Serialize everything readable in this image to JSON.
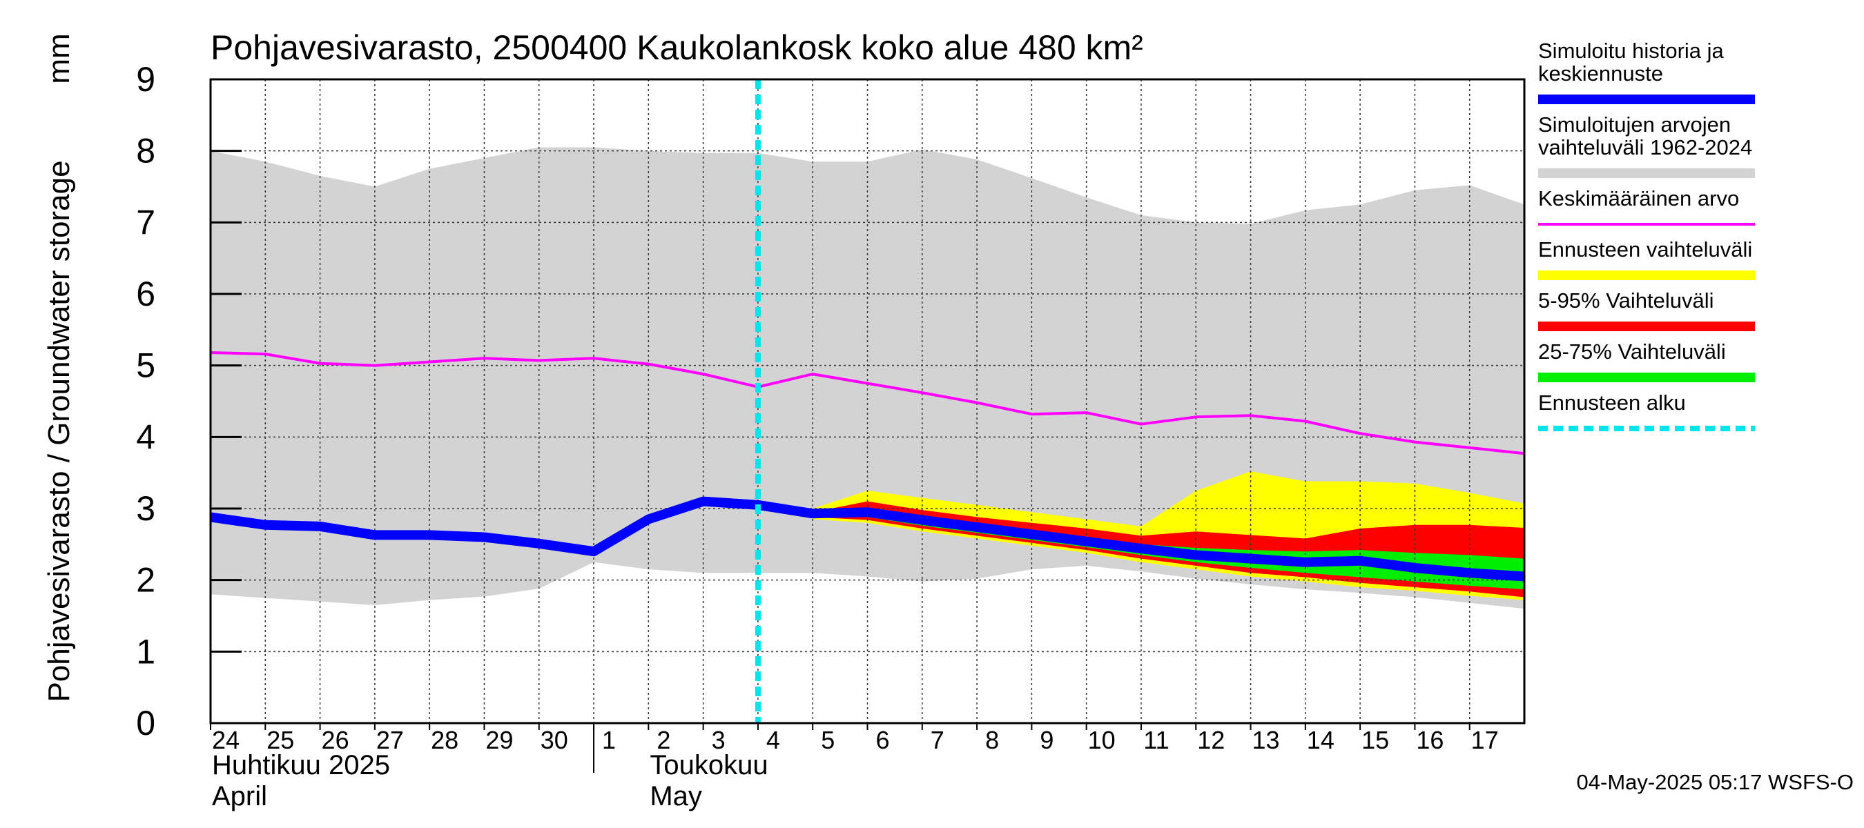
{
  "chart_data": {
    "type": "area",
    "title": "Pohjavesivarasto, 2500400 Kaukolankosk koko alue 480 km²",
    "ylabel": "Pohjavesivarasto / Groundwater storage",
    "yunit": "mm",
    "ylim": [
      0,
      9
    ],
    "yticks": [
      "0",
      "1",
      "2",
      "3",
      "4",
      "5",
      "6",
      "7",
      "8",
      "9"
    ],
    "grid": true,
    "x_start": "2025-04-24",
    "x_end": "2025-05-18",
    "xticks": [
      {
        "date": "2025-04-24",
        "label": "24"
      },
      {
        "date": "2025-04-25",
        "label": "25"
      },
      {
        "date": "2025-04-26",
        "label": "26"
      },
      {
        "date": "2025-04-27",
        "label": "27"
      },
      {
        "date": "2025-04-28",
        "label": "28"
      },
      {
        "date": "2025-04-29",
        "label": "29"
      },
      {
        "date": "2025-04-30",
        "label": "30"
      },
      {
        "date": "2025-05-01",
        "label": "1"
      },
      {
        "date": "2025-05-02",
        "label": "2"
      },
      {
        "date": "2025-05-03",
        "label": "3"
      },
      {
        "date": "2025-05-04",
        "label": "4"
      },
      {
        "date": "2025-05-05",
        "label": "5"
      },
      {
        "date": "2025-05-06",
        "label": "6"
      },
      {
        "date": "2025-05-07",
        "label": "7"
      },
      {
        "date": "2025-05-08",
        "label": "8"
      },
      {
        "date": "2025-05-09",
        "label": "9"
      },
      {
        "date": "2025-05-10",
        "label": "10"
      },
      {
        "date": "2025-05-11",
        "label": "11"
      },
      {
        "date": "2025-05-12",
        "label": "12"
      },
      {
        "date": "2025-05-13",
        "label": "13"
      },
      {
        "date": "2025-05-14",
        "label": "14"
      },
      {
        "date": "2025-05-15",
        "label": "15"
      },
      {
        "date": "2025-05-16",
        "label": "16"
      },
      {
        "date": "2025-05-17",
        "label": "17"
      }
    ],
    "month_labels": [
      {
        "date": "2025-04-24",
        "fi": "Huhtikuu  2025",
        "en": "April"
      },
      {
        "date": "2025-05-02",
        "fi": "Toukokuu",
        "en": "May"
      }
    ],
    "month_separator": "2025-05-01",
    "forecast_start": "2025-05-04",
    "series": [
      {
        "name": "Simuloitujen arvojen vaihteluväli 1962-2024",
        "kind": "band",
        "color": "#d3d3d3",
        "x": [
          "2025-04-24",
          "2025-04-25",
          "2025-04-26",
          "2025-04-27",
          "2025-04-28",
          "2025-04-29",
          "2025-04-30",
          "2025-05-01",
          "2025-05-02",
          "2025-05-03",
          "2025-05-04",
          "2025-05-05",
          "2025-05-06",
          "2025-05-07",
          "2025-05-08",
          "2025-05-09",
          "2025-05-10",
          "2025-05-11",
          "2025-05-12",
          "2025-05-13",
          "2025-05-14",
          "2025-05-15",
          "2025-05-16",
          "2025-05-17",
          "2025-05-18"
        ],
        "upper": [
          8.0,
          7.85,
          7.65,
          7.5,
          7.75,
          7.9,
          8.05,
          8.05,
          8.0,
          7.97,
          7.97,
          7.85,
          7.85,
          8.02,
          7.88,
          7.62,
          7.35,
          7.1,
          7.0,
          6.98,
          7.17,
          7.25,
          7.45,
          7.52,
          7.25
        ],
        "lower": [
          1.8,
          1.75,
          1.7,
          1.65,
          1.72,
          1.77,
          1.88,
          2.25,
          2.15,
          2.1,
          2.1,
          2.1,
          2.05,
          1.98,
          2.02,
          2.15,
          2.2,
          2.12,
          2.02,
          1.94,
          1.87,
          1.82,
          1.76,
          1.68,
          1.6
        ]
      },
      {
        "name": "Ennusteen vaihteluväli",
        "kind": "band",
        "color": "#ffff00",
        "x": [
          "2025-05-05",
          "2025-05-06",
          "2025-05-07",
          "2025-05-08",
          "2025-05-09",
          "2025-05-10",
          "2025-05-11",
          "2025-05-12",
          "2025-05-13",
          "2025-05-14",
          "2025-05-15",
          "2025-05-16",
          "2025-05-17",
          "2025-05-18"
        ],
        "upper": [
          3.0,
          3.25,
          3.15,
          3.05,
          2.95,
          2.85,
          2.75,
          3.25,
          3.52,
          3.38,
          3.38,
          3.35,
          3.22,
          3.07
        ],
        "lower": [
          2.85,
          2.8,
          2.68,
          2.58,
          2.48,
          2.38,
          2.25,
          2.15,
          2.05,
          1.98,
          1.9,
          1.85,
          1.78,
          1.72
        ]
      },
      {
        "name": "5-95% Vaihteluväli",
        "kind": "band",
        "color": "#ff0000",
        "x": [
          "2025-05-05",
          "2025-05-06",
          "2025-05-07",
          "2025-05-08",
          "2025-05-09",
          "2025-05-10",
          "2025-05-11",
          "2025-05-12",
          "2025-05-13",
          "2025-05-14",
          "2025-05-15",
          "2025-05-16",
          "2025-05-17",
          "2025-05-18"
        ],
        "upper": [
          2.95,
          3.1,
          2.98,
          2.88,
          2.8,
          2.72,
          2.62,
          2.68,
          2.63,
          2.58,
          2.72,
          2.77,
          2.77,
          2.73
        ],
        "lower": [
          2.88,
          2.84,
          2.72,
          2.62,
          2.52,
          2.42,
          2.3,
          2.2,
          2.1,
          2.04,
          1.96,
          1.9,
          1.84,
          1.76
        ]
      },
      {
        "name": "25-75% Vaihteluväli",
        "kind": "band",
        "color": "#00ee00",
        "x": [
          "2025-05-05",
          "2025-05-06",
          "2025-05-07",
          "2025-05-08",
          "2025-05-09",
          "2025-05-10",
          "2025-05-11",
          "2025-05-12",
          "2025-05-13",
          "2025-05-14",
          "2025-05-15",
          "2025-05-16",
          "2025-05-17",
          "2025-05-18"
        ],
        "upper": [
          2.93,
          3.0,
          2.9,
          2.8,
          2.7,
          2.6,
          2.5,
          2.45,
          2.42,
          2.4,
          2.42,
          2.38,
          2.35,
          2.3
        ],
        "lower": [
          2.9,
          2.88,
          2.76,
          2.66,
          2.56,
          2.46,
          2.35,
          2.25,
          2.17,
          2.1,
          2.04,
          1.98,
          1.92,
          1.87
        ]
      },
      {
        "name": "Keskimääräinen arvo",
        "kind": "line",
        "color": "#ff00ff",
        "x": [
          "2025-04-24",
          "2025-04-25",
          "2025-04-26",
          "2025-04-27",
          "2025-04-28",
          "2025-04-29",
          "2025-04-30",
          "2025-05-01",
          "2025-05-02",
          "2025-05-03",
          "2025-05-04",
          "2025-05-05",
          "2025-05-06",
          "2025-05-07",
          "2025-05-08",
          "2025-05-09",
          "2025-05-10",
          "2025-05-11",
          "2025-05-12",
          "2025-05-13",
          "2025-05-14",
          "2025-05-15",
          "2025-05-16",
          "2025-05-17",
          "2025-05-18"
        ],
        "y": [
          5.18,
          5.16,
          5.03,
          5.0,
          5.05,
          5.1,
          5.07,
          5.1,
          5.02,
          4.88,
          4.7,
          4.88,
          4.75,
          4.62,
          4.48,
          4.32,
          4.34,
          4.18,
          4.28,
          4.3,
          4.22,
          4.05,
          3.93,
          3.85,
          3.77
        ]
      },
      {
        "name": "Simuloitu historia ja keskiennuste",
        "kind": "line",
        "color": "#0000ff",
        "x": [
          "2025-04-24",
          "2025-04-25",
          "2025-04-26",
          "2025-04-27",
          "2025-04-28",
          "2025-04-29",
          "2025-04-30",
          "2025-05-01",
          "2025-05-02",
          "2025-05-03",
          "2025-05-04",
          "2025-05-05",
          "2025-05-06",
          "2025-05-07",
          "2025-05-08",
          "2025-05-09",
          "2025-05-10",
          "2025-05-11",
          "2025-05-12",
          "2025-05-13",
          "2025-05-14",
          "2025-05-15",
          "2025-05-16",
          "2025-05-17",
          "2025-05-18"
        ],
        "y": [
          2.88,
          2.77,
          2.75,
          2.63,
          2.63,
          2.6,
          2.51,
          2.4,
          2.85,
          3.1,
          3.05,
          2.93,
          2.95,
          2.84,
          2.74,
          2.64,
          2.54,
          2.44,
          2.35,
          2.3,
          2.25,
          2.27,
          2.17,
          2.1,
          2.05
        ]
      }
    ],
    "legend": {
      "placement": "right",
      "items": [
        {
          "label": "Simuloitu historia ja keskiennuste",
          "color": "#0000ff",
          "style": "thick"
        },
        {
          "label": "Simuloitujen arvojen vaihteluväli 1962-2024",
          "color": "#d3d3d3",
          "style": "thick"
        },
        {
          "label": "Keskimääräinen arvo",
          "color": "#ff00ff",
          "style": "thin"
        },
        {
          "label": "Ennusteen vaihteluväli",
          "color": "#ffff00",
          "style": "thick"
        },
        {
          "label": "5-95% Vaihteluväli",
          "color": "#ff0000",
          "style": "thick"
        },
        {
          "label": "25-75% Vaihteluväli",
          "color": "#00ee00",
          "style": "thick"
        },
        {
          "label": "Ennusteen alku",
          "color": "#00e5ee",
          "style": "dashed"
        }
      ]
    },
    "footer": "04-May-2025 05:17 WSFS-O"
  }
}
